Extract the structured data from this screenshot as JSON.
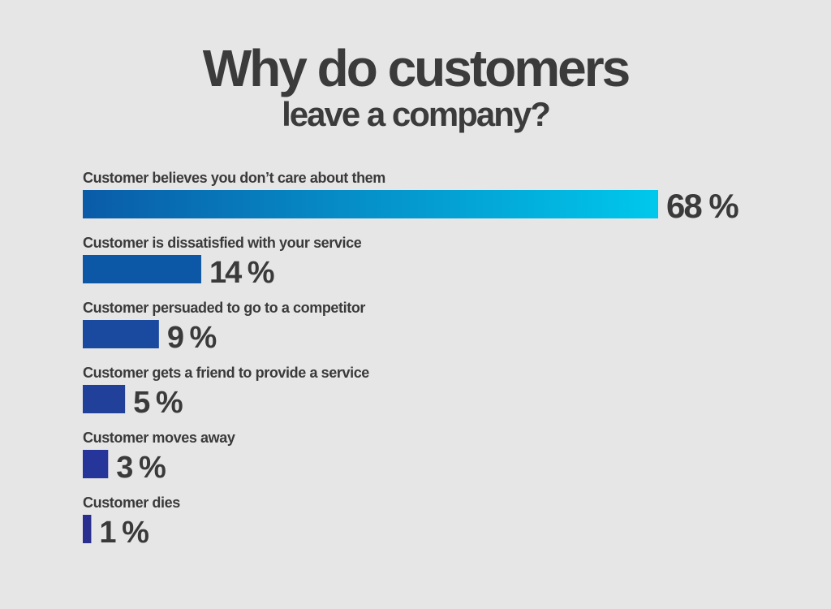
{
  "chart_data": {
    "type": "bar",
    "orientation": "horizontal",
    "title": "Why do customers",
    "subtitle": "leave a company?",
    "categories": [
      "Customer believes you don’t care about them",
      "Customer is dissatisfied with your service",
      "Customer persuaded to go to a competitor",
      "Customer gets a friend to provide a service",
      "Customer moves away",
      "Customer dies"
    ],
    "values": [
      68,
      14,
      9,
      5,
      3,
      1
    ],
    "value_labels": [
      "68 %",
      "14 %",
      "9 %",
      "5 %",
      "3 %",
      "1 %"
    ],
    "unit": "%",
    "xlim": [
      0,
      100
    ],
    "grid": false,
    "legend": "none",
    "colors": {
      "background": "#e6e6e6",
      "text": "#3a3a3a",
      "bar_gradient_start": "#0a5ba8",
      "bar_gradient_end_top": "#00c8ec",
      "bar_colors": [
        "#0a5ba8",
        "#0d58a6",
        "#1a4aa0",
        "#20409a",
        "#263599",
        "#2a2e8e"
      ]
    }
  }
}
